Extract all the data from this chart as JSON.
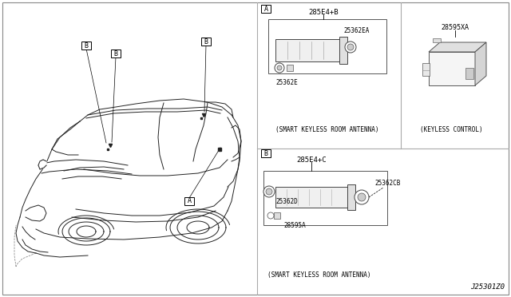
{
  "bg_color": "#ffffff",
  "line_color": "#000000",
  "divider_color": "#aaaaaa",
  "diagram_id": "J25301Z0",
  "top_right_section": {
    "label": "A",
    "part_number_above": "285E4+B",
    "box_part1": "25362EA",
    "box_part2": "25362E",
    "caption": "(SMART KEYLESS ROOM ANTENNA)"
  },
  "top_right_keyless": {
    "part_number": "28595XA",
    "caption": "(KEYLESS CONTROL)"
  },
  "bottom_right_section": {
    "label": "B",
    "part_number_above": "285E4+C",
    "box_part1": "25362CB",
    "box_part2": "25362D",
    "box_part3": "28595A",
    "caption": "(SMART KEYLESS ROOM ANTENNA)"
  }
}
